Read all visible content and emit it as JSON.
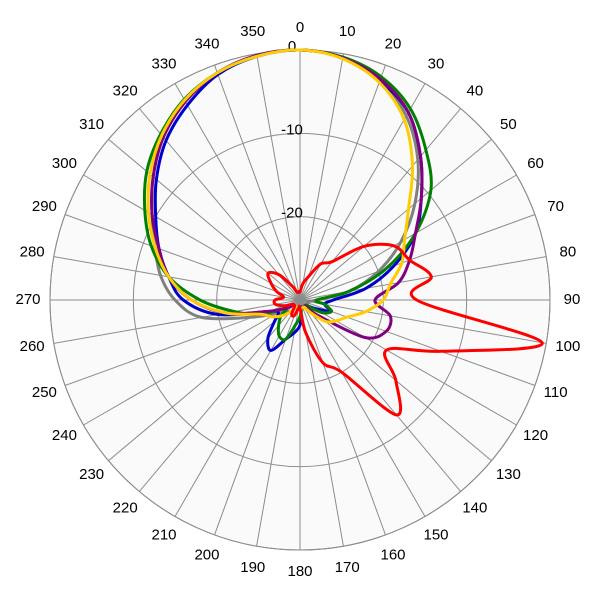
{
  "chart_data": {
    "type": "polar",
    "theta": [
      0,
      10,
      20,
      30,
      40,
      50,
      60,
      70,
      80,
      90,
      100,
      110,
      120,
      130,
      140,
      150,
      160,
      170,
      180,
      190,
      200,
      210,
      220,
      230,
      240,
      250,
      260,
      270,
      280,
      290,
      300,
      310,
      320,
      330,
      340,
      350
    ],
    "rlim": [
      -30,
      0
    ],
    "rticks": [
      0,
      -10,
      -20
    ],
    "grid": true,
    "series": [
      {
        "color": "#808080",
        "values": [
          0,
          -0.5,
          -2,
          -4.5,
          -8,
          -12,
          -16,
          -20,
          -24,
          -28,
          -29,
          -29,
          -29,
          -29,
          -29,
          -29,
          -29,
          -29,
          -29,
          -29,
          -29,
          -29,
          -28,
          -28,
          -27,
          -24,
          -18,
          -15,
          -13,
          -11.5,
          -9.5,
          -7,
          -4.5,
          -2.5,
          -1,
          -0.2
        ]
      },
      {
        "color": "#0000cc",
        "values": [
          0,
          -0.5,
          -2,
          -4,
          -7.5,
          -11,
          -14,
          -18,
          -22,
          -26,
          -27,
          -26,
          -28,
          -29,
          -29,
          -29,
          -29,
          -29,
          -27,
          -26,
          -25,
          -23,
          -24,
          -26,
          -27,
          -26,
          -20,
          -16,
          -14,
          -12,
          -10,
          -7.5,
          -5,
          -3,
          -1.2,
          -0.3
        ]
      },
      {
        "color": "#008000",
        "values": [
          0,
          -0.4,
          -1.5,
          -3.5,
          -6.5,
          -9.5,
          -14,
          -19,
          -24,
          -28,
          -27,
          -26,
          -27,
          -29,
          -29,
          -29,
          -29,
          -29,
          -28,
          -27,
          -25,
          -25,
          -26,
          -27,
          -28,
          -25,
          -22,
          -18,
          -14,
          -11,
          -8.5,
          -6,
          -4,
          -2.2,
          -1,
          -0.2
        ]
      },
      {
        "color": "#800080",
        "values": [
          0,
          -0.5,
          -1.8,
          -4,
          -7.5,
          -11,
          -14,
          -16,
          -18,
          -21,
          -19,
          -19,
          -21,
          -27,
          -29,
          -29,
          -29,
          -29,
          -29,
          -29,
          -29,
          -29,
          -29,
          -29,
          -28,
          -26,
          -21,
          -17,
          -14,
          -12,
          -9.5,
          -7,
          -4.5,
          -2.5,
          -1,
          -0.2
        ]
      },
      {
        "color": "#ffcc00",
        "values": [
          0,
          -0.6,
          -2.2,
          -5,
          -9,
          -13,
          -15.5,
          -17,
          -19,
          -20,
          -22,
          -24,
          -25,
          -26,
          -28,
          -29,
          -29,
          -29,
          -29,
          -29,
          -29,
          -29,
          -28,
          -27,
          -26,
          -25,
          -21,
          -17,
          -14,
          -11.5,
          -9,
          -6.5,
          -4.2,
          -2.3,
          -1,
          -0.3
        ]
      },
      {
        "color": "#ff0000",
        "values": [
          -29,
          -28,
          -27,
          -25,
          -24,
          -20,
          -17,
          -16,
          -14,
          -16,
          -0.5,
          -12,
          -18,
          -15,
          -12,
          -20,
          -22,
          -26,
          -29,
          -29,
          -28,
          -28,
          -29,
          -29,
          -29,
          -28,
          -27,
          -27,
          -28,
          -27,
          -26,
          -25,
          -26,
          -28,
          -29,
          -29
        ]
      }
    ]
  }
}
